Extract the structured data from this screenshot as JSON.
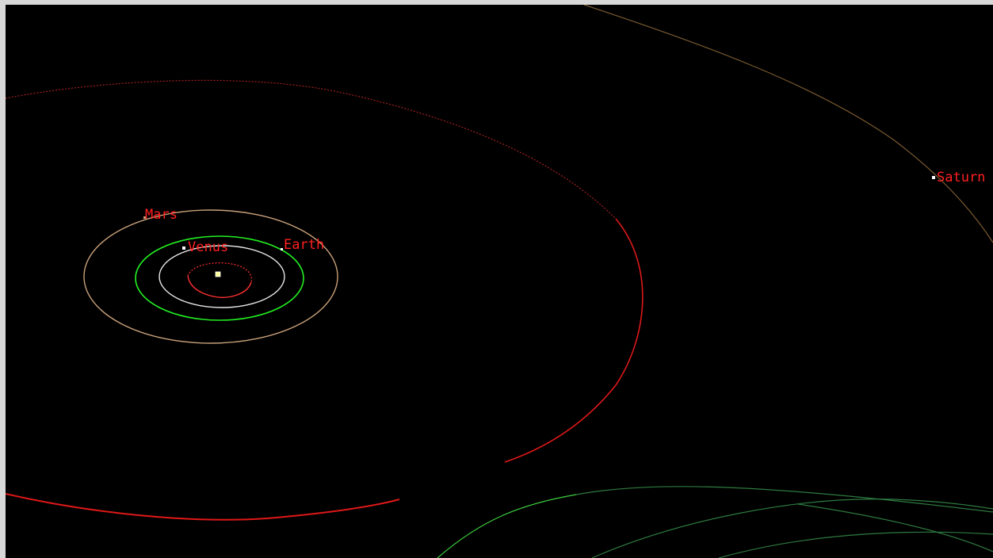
{
  "bodies": [
    {
      "id": "sun",
      "label": "",
      "color": "#ffff99"
    },
    {
      "id": "mercury",
      "label": "",
      "color": "#ff3030"
    },
    {
      "id": "venus",
      "label": "Venus",
      "color": "#e6e6e6"
    },
    {
      "id": "earth",
      "label": "Earth",
      "color": "#22ee22"
    },
    {
      "id": "mars",
      "label": "Mars",
      "color": "#c8a07a"
    },
    {
      "id": "saturn",
      "label": "Saturn",
      "color": "#8a6a3a"
    }
  ],
  "colors": {
    "background": "#000000",
    "frame": "#d8d8d8",
    "label": "#ff2020",
    "asteroid_orbit": "#ff2020",
    "comet_orbit_green": "#2e8a4a",
    "comet_orbit_bright": "#3fcf3f"
  }
}
